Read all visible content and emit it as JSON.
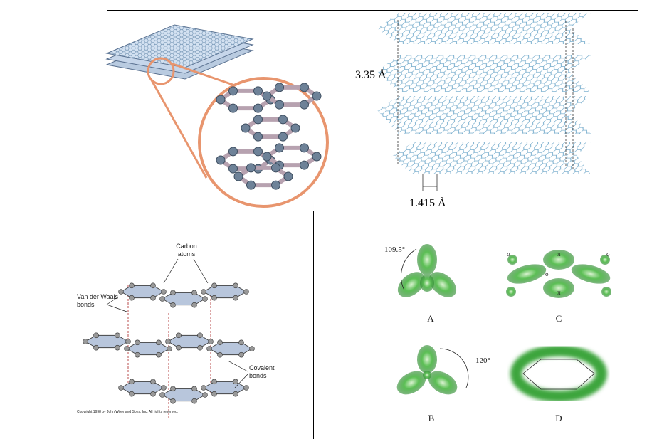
{
  "graphite_3d": {
    "interlayer_spacing": "3.35 Å",
    "bond_length": "1.415 Å"
  },
  "layer_diagram": {
    "carbon_atoms": [
      "Carbon",
      "atoms"
    ],
    "van_der_waals": [
      "Van der Waals",
      "bonds"
    ],
    "covalent": [
      "Covalent",
      "bonds"
    ],
    "copyright": "Copyright 1998 by John Wiley and Sons, Inc.  All rights reserved."
  },
  "orbitals": {
    "angle_sp3": "109.5°",
    "angle_sp2": "120°",
    "panels": [
      "A",
      "B",
      "C",
      "D"
    ],
    "sigma": "σ",
    "pi": "π"
  }
}
